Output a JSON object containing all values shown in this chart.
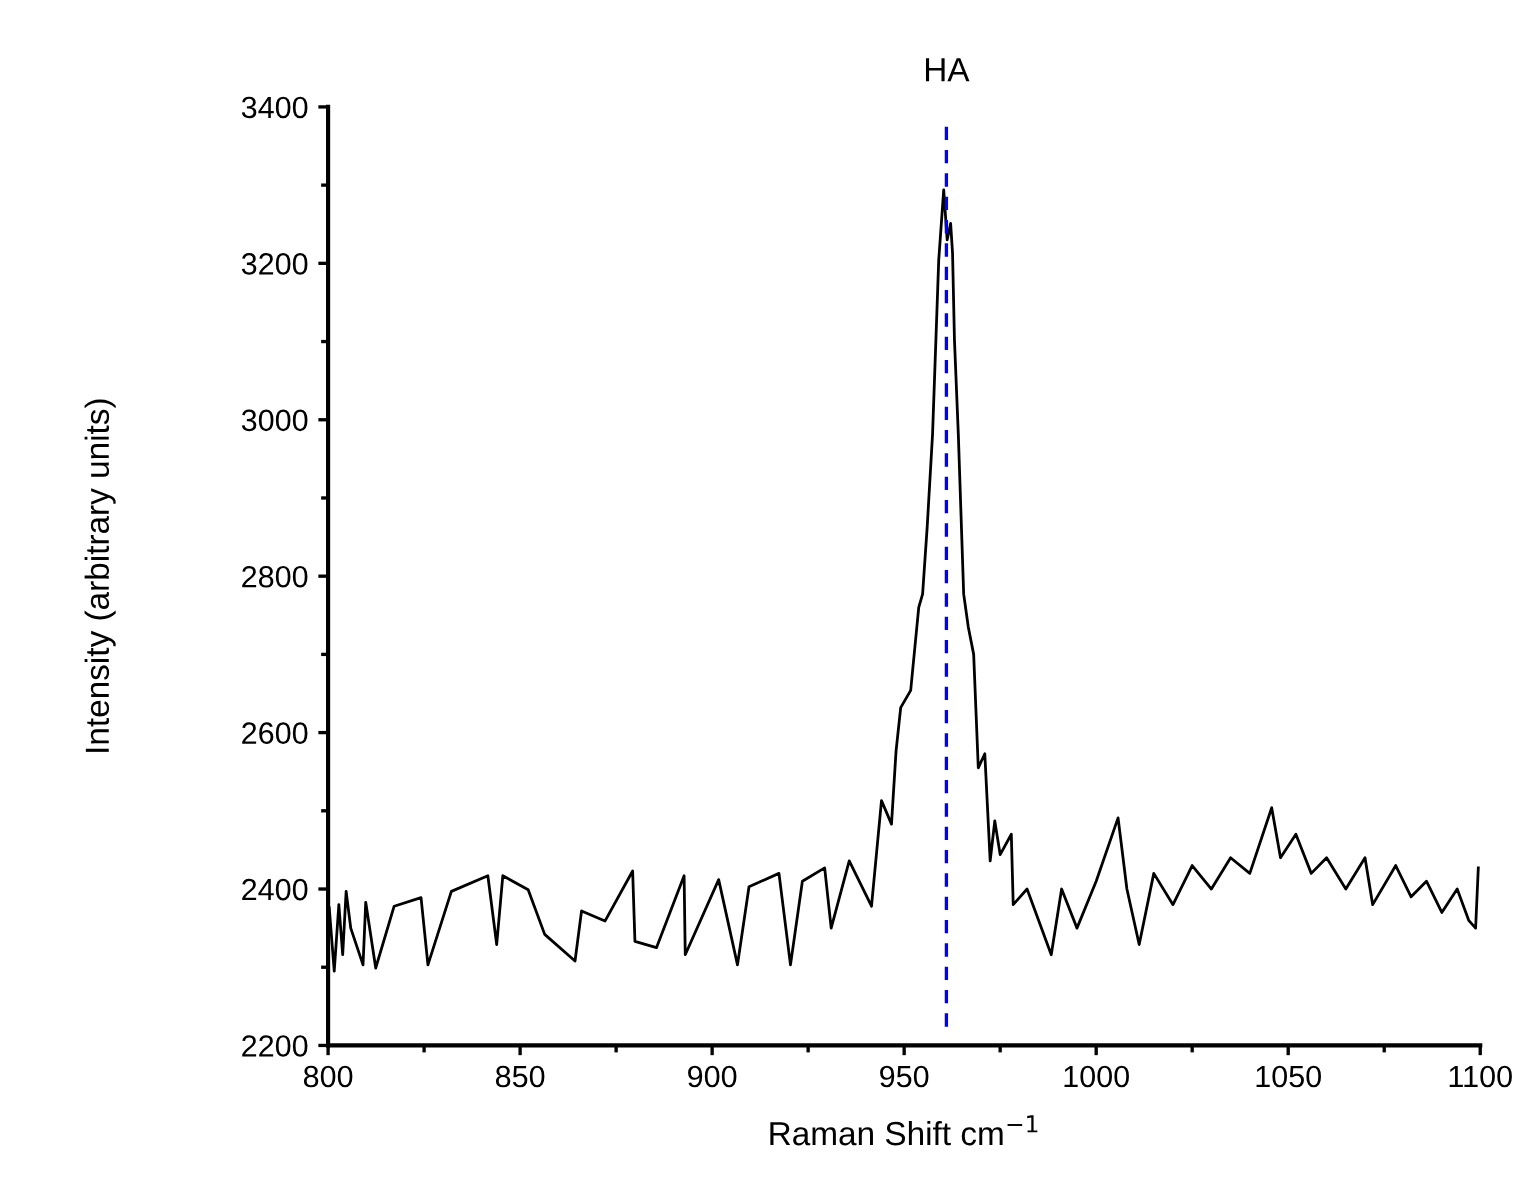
{
  "chart_data": {
    "type": "line",
    "xlabel": "Raman Shift cm$^{−1}$",
    "ylabel": "Intensity (arbitrary units)",
    "xlim": [
      800,
      1100
    ],
    "ylim": [
      2200,
      3400
    ],
    "xticks": [
      800,
      {
        "value": 825,
        "label": null
      },
      850,
      {
        "value": 875,
        "label": null
      },
      900,
      {
        "value": 925,
        "label": null
      },
      950,
      {
        "value": 975,
        "label": null
      },
      1000,
      {
        "value": 1025,
        "label": null
      },
      1050,
      {
        "value": 1075,
        "label": null
      },
      1100
    ],
    "yticks": [
      2200,
      {
        "value": 2300,
        "label": null
      },
      2400,
      {
        "value": 2500,
        "label": null
      },
      2600,
      {
        "value": 2700,
        "label": null
      },
      2800,
      {
        "value": 2900,
        "label": null
      },
      3000,
      {
        "value": 3100,
        "label": null
      },
      3200,
      {
        "value": 3300,
        "label": null
      },
      3400
    ],
    "grid": false,
    "legend": false,
    "marker": "none",
    "line_style": "solid",
    "ref_lines": [
      {
        "axis": "x",
        "value": 961,
        "label": "HA",
        "color": "#0000ff",
        "line_style": "dashed"
      }
    ],
    "series": [
      {
        "color": "#000000",
        "x": [
          800.3,
          801.6,
          802.8,
          803.8,
          804.7,
          805.9,
          809.1,
          809.8,
          812.4,
          817.2,
          824.2,
          826.0,
          832.1,
          841.6,
          843.9,
          845.5,
          852.1,
          856.4,
          864.3,
          866.0,
          872.1,
          879.3,
          879.9,
          885.5,
          892.7,
          893.0,
          901.7,
          906.6,
          909.6,
          917.4,
          920.4,
          923.5,
          929.3,
          931.0,
          935.7,
          941.5,
          944.1,
          946.7,
          947.9,
          949.1,
          951.7,
          953.8,
          954.8,
          956.0,
          957.4,
          959.0,
          960.3,
          961.2,
          962.1,
          962.6,
          963.1,
          964.1,
          965.5,
          966.7,
          968.1,
          969.3,
          971.0,
          972.4,
          973.6,
          975.0,
          977.9,
          978.4,
          982.0,
          985.0,
          988.3,
          991.0,
          995.0,
          1000.0,
          1005.7,
          1008.0,
          1011.2,
          1015.0,
          1020.0,
          1025.0,
          1030.0,
          1035.0,
          1040.0,
          1045.7,
          1048.0,
          1052.0,
          1056.0,
          1060.0,
          1065.0,
          1070.0,
          1072.0,
          1078.0,
          1082.0,
          1086.0,
          1090.0,
          1094.0,
          1097.0,
          1098.8,
          1099.5
        ],
        "values": [
          2376,
          2295,
          2380,
          2316,
          2397,
          2350,
          2303,
          2383,
          2299,
          2378,
          2389,
          2303,
          2397,
          2417,
          2329,
          2417,
          2399,
          2342,
          2308,
          2372,
          2359,
          2423,
          2333,
          2325,
          2417,
          2316,
          2412,
          2303,
          2403,
          2420,
          2303,
          2410,
          2427,
          2350,
          2436,
          2378,
          2513,
          2483,
          2577,
          2632,
          2654,
          2760,
          2777,
          2863,
          2982,
          3204,
          3294,
          3230,
          3251,
          3213,
          3102,
          2982,
          2777,
          2735,
          2700,
          2555,
          2573,
          2436,
          2487,
          2444,
          2470,
          2380,
          2400,
          2360,
          2316,
          2400,
          2350,
          2410,
          2491,
          2400,
          2329,
          2420,
          2380,
          2430,
          2400,
          2440,
          2420,
          2504,
          2440,
          2470,
          2420,
          2440,
          2400,
          2440,
          2380,
          2430,
          2390,
          2410,
          2370,
          2400,
          2360,
          2350,
          2427
        ]
      }
    ]
  }
}
